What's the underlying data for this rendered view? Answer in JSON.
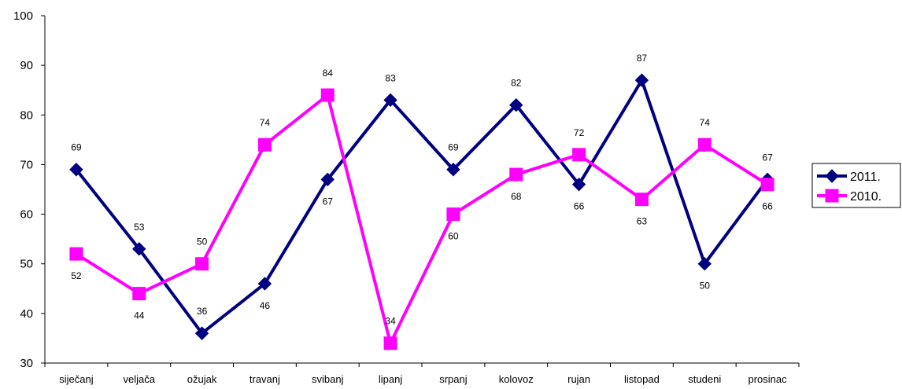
{
  "chart_data": {
    "type": "line",
    "categories": [
      "siječanj",
      "veljača",
      "ožujak",
      "travanj",
      "svibanj",
      "lipanj",
      "srpanj",
      "kolovoz",
      "rujan",
      "listopad",
      "studeni",
      "prosinac"
    ],
    "series": [
      {
        "name": "2011.",
        "values": [
          69,
          53,
          36,
          46,
          67,
          83,
          69,
          82,
          66,
          87,
          50,
          67
        ],
        "color": "#000080",
        "marker": "diamond"
      },
      {
        "name": "2010.",
        "values": [
          52,
          44,
          50,
          74,
          84,
          34,
          60,
          68,
          72,
          63,
          74,
          66
        ],
        "color": "#FF00FF",
        "marker": "square"
      }
    ],
    "ylim": [
      30,
      100
    ],
    "yticks": [
      30,
      40,
      50,
      60,
      70,
      80,
      90,
      100
    ],
    "grid": false,
    "legend_position": "right",
    "data_labels": true
  }
}
